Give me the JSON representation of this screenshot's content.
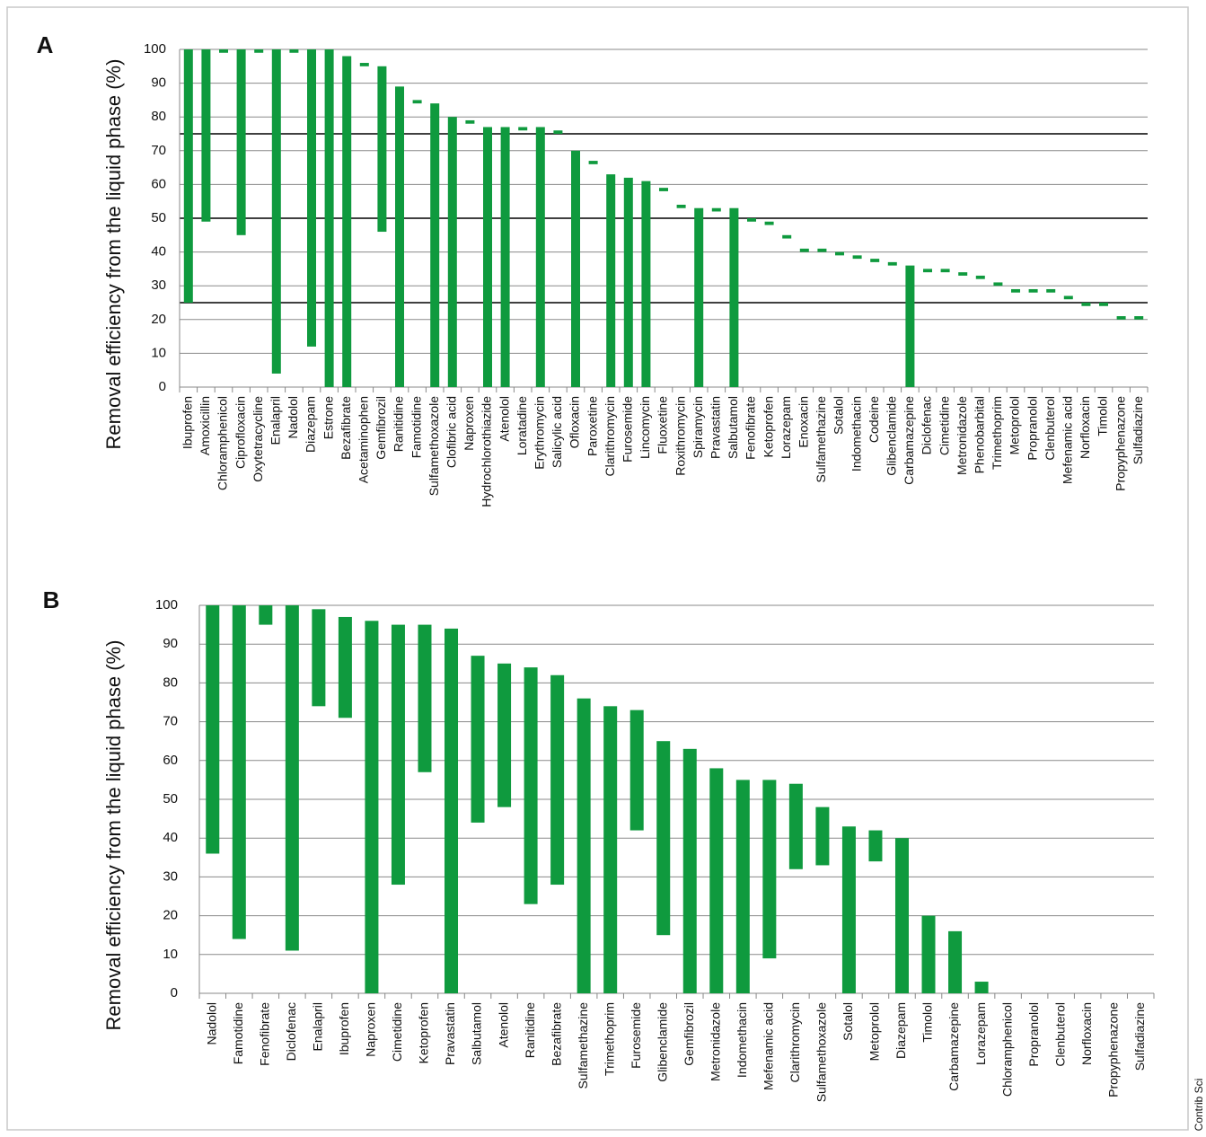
{
  "chart_data": [
    {
      "type": "floating-bar",
      "panel_label": "A",
      "ylabel": "Removal efficiency from the liquid phase (%)",
      "color": "#0f9a3e",
      "categories": [
        "Ibuprofen",
        "Amoxicillin",
        "Chloramphenicol",
        "Ciprofloxacin",
        "Oxytetracycline",
        "Enalapril",
        "Nadolol",
        "Diazepam",
        "Estrone",
        "Bezafibrate",
        "Acetaminophen",
        "Gemfibrozil",
        "Ranitidine",
        "Famotidine",
        "Sulfamethoxazole",
        "Clofibric acid",
        "Naproxen",
        "Hydrochlorothiazide",
        "Atenolol",
        "Loratadine",
        "Erythromycin",
        "Salicylic acid",
        "Ofloxacin",
        "Paroxetine",
        "Clarithromycin",
        "Furosemide",
        "Lincomycin",
        "Fluoxetine",
        "Roxithromycin",
        "Spiramycin",
        "Pravastatin",
        "Salbutamol",
        "Fenofibrate",
        "Ketoprofen",
        "Lorazepam",
        "Enoxacin",
        "Sulfamethazine",
        "Sotalol",
        "Indomethacin",
        "Codeine",
        "Glibenclamide",
        "Carbamazepine",
        "Diclofenac",
        "Cimetidine",
        "Metronidazole",
        "Phenobarbital",
        "Trimethoprim",
        "Metoprolol",
        "Propranolol",
        "Clenbuterol",
        "Mefenamic acid",
        "Norfloxacin",
        "Timolol",
        "Propyphenazone",
        "Sulfadiazine"
      ],
      "low": [
        25,
        49,
        99,
        45,
        99,
        4,
        99,
        12,
        0,
        0,
        95,
        46,
        0,
        84,
        0,
        0,
        78,
        0,
        0,
        76,
        0,
        75,
        0,
        66,
        0,
        0,
        0,
        58,
        53,
        0,
        52,
        0,
        49,
        48,
        44,
        40,
        40,
        39,
        38,
        37,
        36,
        0,
        34,
        34,
        33,
        32,
        30,
        28,
        28,
        28,
        26,
        24,
        24,
        20,
        20
      ],
      "high": [
        100,
        100,
        100,
        100,
        100,
        100,
        100,
        100,
        100,
        98,
        96,
        95,
        89,
        85,
        84,
        80,
        79,
        77,
        77,
        77,
        77,
        76,
        70,
        67,
        63,
        62,
        61,
        59,
        54,
        53,
        53,
        53,
        50,
        49,
        45,
        41,
        41,
        40,
        39,
        38,
        37,
        36,
        35,
        35,
        34,
        33,
        31,
        29,
        29,
        29,
        27,
        25,
        25,
        21,
        21
      ],
      "ylim": [
        0,
        100
      ],
      "yticks": [
        0,
        10,
        20,
        30,
        40,
        50,
        60,
        70,
        80,
        90,
        100
      ],
      "grid": true,
      "reference_lines": [
        25,
        50,
        75
      ]
    },
    {
      "type": "floating-bar",
      "panel_label": "B",
      "ylabel": "Removal efficiency from the liquid phase (%)",
      "color": "#0f9a3e",
      "categories": [
        "Nadolol",
        "Famotidine",
        "Fenofibrate",
        "Diclofenac",
        "Enalapril",
        "Ibuprofen",
        "Naproxen",
        "Cimetidine",
        "Ketoprofen",
        "Pravastatin",
        "Salbutamol",
        "Atenolol",
        "Ranitidine",
        "Bezafibrate",
        "Sulfamethazine",
        "Trimethoprim",
        "Furosemide",
        "Glibenclamide",
        "Gemfibrozil",
        "Metronidazole",
        "Indomethacin",
        "Mefenamic acid",
        "Clarithromycin",
        "Sulfamethoxazole",
        "Sotalol",
        "Metoprolol",
        "Diazepam",
        "Timolol",
        "Carbamazepine",
        "Lorazepam",
        "Chloramphenicol",
        "Propranolol",
        "Clenbuterol",
        "Norfloxacin",
        "Propyphenazone",
        "Sulfadiazine"
      ],
      "low": [
        36,
        14,
        95,
        11,
        74,
        71,
        0,
        28,
        57,
        0,
        44,
        48,
        23,
        28,
        0,
        0,
        42,
        15,
        0,
        0,
        0,
        9,
        32,
        33,
        0,
        34,
        0,
        0,
        0,
        0,
        null,
        null,
        null,
        null,
        null,
        null
      ],
      "high": [
        100,
        100,
        100,
        100,
        99,
        97,
        96,
        95,
        95,
        94,
        87,
        85,
        84,
        82,
        76,
        74,
        73,
        65,
        63,
        58,
        55,
        55,
        54,
        48,
        43,
        42,
        40,
        20,
        16,
        3,
        null,
        null,
        null,
        null,
        null,
        null
      ],
      "ylim": [
        0,
        100
      ],
      "yticks": [
        0,
        10,
        20,
        30,
        40,
        50,
        60,
        70,
        80,
        90,
        100
      ],
      "grid": true,
      "reference_lines": []
    }
  ],
  "side_note": "Contrib Sci"
}
